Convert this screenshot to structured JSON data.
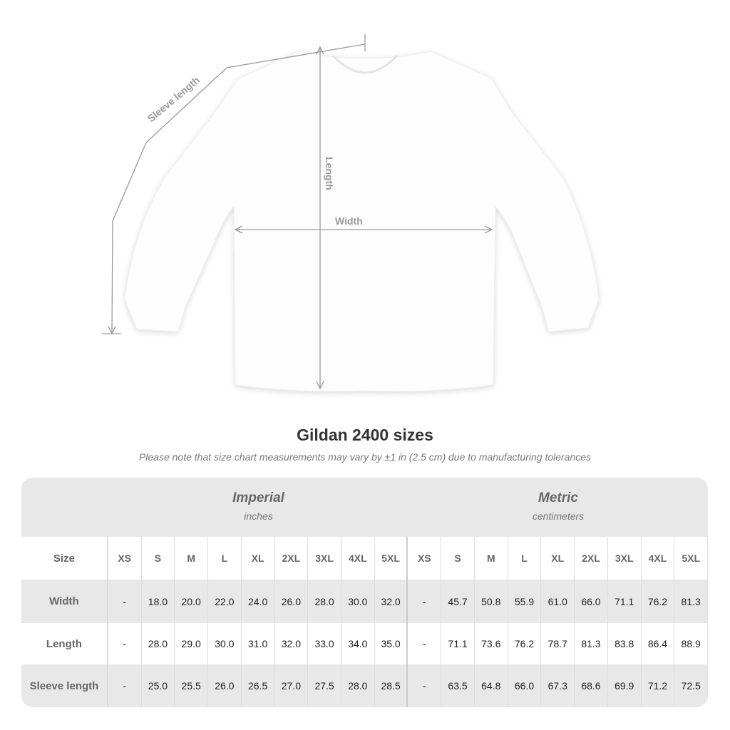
{
  "diagram": {
    "labels": {
      "sleeve": "Sleeve length",
      "length": "Length",
      "width": "Width"
    }
  },
  "title": "Gildan 2400 sizes",
  "note": "Please note that size chart measurements may vary by ±1 in (2.5 cm) due to manufacturing tolerances",
  "table": {
    "imperial": {
      "heading": "Imperial",
      "unit": "inches"
    },
    "metric": {
      "heading": "Metric",
      "unit": "centimeters"
    },
    "size_label": "Size",
    "sizes": [
      "XS",
      "S",
      "M",
      "L",
      "XL",
      "2XL",
      "3XL",
      "4XL",
      "5XL"
    ],
    "rows": [
      {
        "label": "Width",
        "imperial": [
          "-",
          "18.0",
          "20.0",
          "22.0",
          "24.0",
          "26.0",
          "28.0",
          "30.0",
          "32.0"
        ],
        "metric": [
          "-",
          "45.7",
          "50.8",
          "55.9",
          "61.0",
          "66.0",
          "71.1",
          "76.2",
          "81.3"
        ]
      },
      {
        "label": "Length",
        "imperial": [
          "-",
          "28.0",
          "29.0",
          "30.0",
          "31.0",
          "32.0",
          "33.0",
          "34.0",
          "35.0"
        ],
        "metric": [
          "-",
          "71.1",
          "73.6",
          "76.2",
          "78.7",
          "81.3",
          "83.8",
          "86.4",
          "88.9"
        ]
      },
      {
        "label": "Sleeve length",
        "imperial": [
          "-",
          "25.0",
          "25.5",
          "26.0",
          "26.5",
          "27.0",
          "27.5",
          "28.0",
          "28.5"
        ],
        "metric": [
          "-",
          "63.5",
          "64.8",
          "66.0",
          "67.3",
          "68.6",
          "69.9",
          "71.2",
          "72.5"
        ]
      }
    ]
  }
}
